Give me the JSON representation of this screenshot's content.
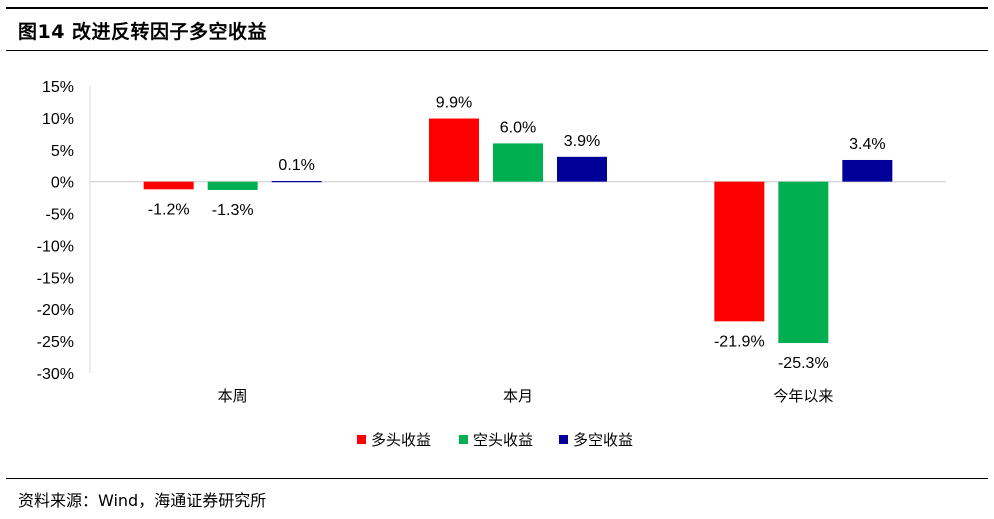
{
  "title": "图14 改进反转因子多空收益",
  "source": "资料来源：Wind，海通证券研究所",
  "chart_data": {
    "type": "bar",
    "categories": [
      "本周",
      "本月",
      "今年以来"
    ],
    "series": [
      {
        "name": "多头收益",
        "color": "#ff0000",
        "values": [
          -1.2,
          9.9,
          -21.9
        ]
      },
      {
        "name": "空头收益",
        "color": "#00b050",
        "values": [
          -1.3,
          6.0,
          -25.3
        ]
      },
      {
        "name": "多空收益",
        "color": "#000099",
        "values": [
          0.1,
          3.9,
          3.4
        ]
      }
    ],
    "ylim": [
      -30,
      15
    ],
    "yticks": [
      15,
      10,
      5,
      0,
      -5,
      -10,
      -15,
      -20,
      -25,
      -30
    ],
    "ytick_labels": [
      "15%",
      "10%",
      "5%",
      "0%",
      "-5%",
      "-10%",
      "-15%",
      "-20%",
      "-25%",
      "-30%"
    ],
    "data_labels": [
      [
        "-1.2%",
        "9.9%",
        "-21.9%"
      ],
      [
        "-1.3%",
        "6.0%",
        "-25.3%"
      ],
      [
        "0.1%",
        "3.9%",
        "3.4%"
      ]
    ],
    "legend_position": "bottom",
    "grid": false
  }
}
